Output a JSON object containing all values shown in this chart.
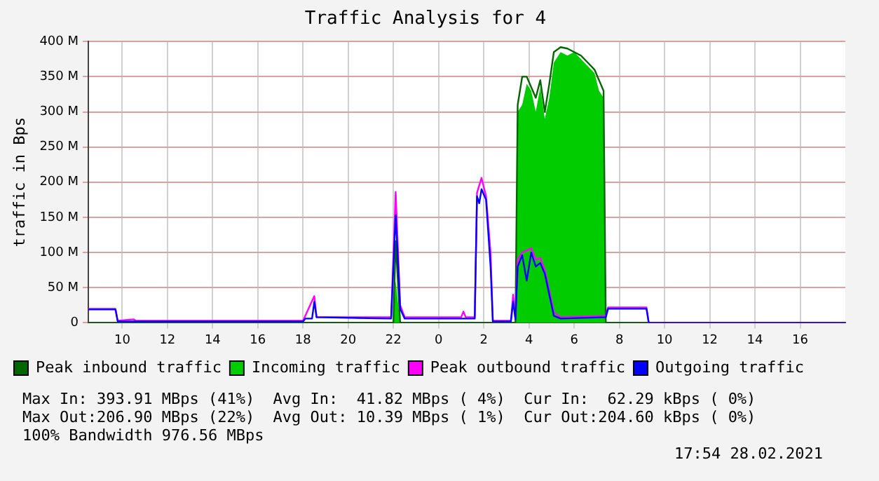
{
  "chart_data": {
    "type": "line",
    "title": "Traffic Analysis for 4",
    "ylabel": "traffic in Bps",
    "xlim": [
      "2021-02-27T08:30",
      "2021-02-28T18:00"
    ],
    "xticks": [
      {
        "value": "2021-02-27T10:00",
        "label": "10"
      },
      {
        "value": "2021-02-27T12:00",
        "label": "12"
      },
      {
        "value": "2021-02-27T14:00",
        "label": "14"
      },
      {
        "value": "2021-02-27T16:00",
        "label": "16"
      },
      {
        "value": "2021-02-27T18:00",
        "label": "18"
      },
      {
        "value": "2021-02-27T20:00",
        "label": "20"
      },
      {
        "value": "2021-02-27T22:00",
        "label": "22"
      },
      {
        "value": "2021-02-28T00:00",
        "label": "0"
      },
      {
        "value": "2021-02-28T02:00",
        "label": "2"
      },
      {
        "value": "2021-02-28T04:00",
        "label": "4"
      },
      {
        "value": "2021-02-28T06:00",
        "label": "6"
      },
      {
        "value": "2021-02-28T08:00",
        "label": "8"
      },
      {
        "value": "2021-02-28T10:00",
        "label": "10"
      },
      {
        "value": "2021-02-28T12:00",
        "label": "12"
      },
      {
        "value": "2021-02-28T14:00",
        "label": "14"
      },
      {
        "value": "2021-02-28T16:00",
        "label": "16"
      }
    ],
    "ylim": [
      0,
      400
    ],
    "yticks": [
      0,
      {
        "value": 50,
        "label": "50 M"
      },
      {
        "value": 100,
        "label": "100 M"
      },
      {
        "value": 150,
        "label": "150 M"
      },
      {
        "value": 200,
        "label": "200 M"
      },
      {
        "value": 250,
        "label": "250 M"
      },
      {
        "value": 300,
        "label": "300 M"
      },
      {
        "value": 350,
        "label": "350 M"
      },
      {
        "value": 400,
        "label": "400 M"
      }
    ],
    "grid": true,
    "legend": "bottom",
    "marker": "none",
    "line_style": "solid",
    "series": [
      {
        "name": "Peak inbound traffic",
        "color": "#006600",
        "x": [
          "2021-02-27T08:30",
          "2021-02-27T22:00",
          "2021-02-27T22:06",
          "2021-02-27T22:18",
          "2021-02-28T03:24",
          "2021-02-28T03:30",
          "2021-02-28T03:42",
          "2021-02-28T03:54",
          "2021-02-28T04:06",
          "2021-02-28T04:18",
          "2021-02-28T04:30",
          "2021-02-28T04:42",
          "2021-02-28T04:54",
          "2021-02-28T05:06",
          "2021-02-28T05:24",
          "2021-02-28T05:42",
          "2021-02-28T06:00",
          "2021-02-28T06:18",
          "2021-02-28T06:36",
          "2021-02-28T06:54",
          "2021-02-28T07:06",
          "2021-02-28T07:18",
          "2021-02-28T07:24",
          "2021-02-28T18:00"
        ],
        "values": [
          0,
          0,
          116,
          0,
          0,
          310,
          350,
          350,
          335,
          320,
          345,
          300,
          340,
          385,
          392,
          390,
          385,
          380,
          370,
          360,
          345,
          330,
          0,
          0
        ]
      },
      {
        "name": "Incoming traffic",
        "type": "area",
        "color": "#00cc00",
        "x": [
          "2021-02-27T08:30",
          "2021-02-27T22:00",
          "2021-02-27T22:06",
          "2021-02-27T22:18",
          "2021-02-28T03:24",
          "2021-02-28T03:30",
          "2021-02-28T03:42",
          "2021-02-28T03:54",
          "2021-02-28T04:06",
          "2021-02-28T04:18",
          "2021-02-28T04:30",
          "2021-02-28T04:42",
          "2021-02-28T04:54",
          "2021-02-28T05:06",
          "2021-02-28T05:24",
          "2021-02-28T05:42",
          "2021-02-28T06:00",
          "2021-02-28T06:18",
          "2021-02-28T06:36",
          "2021-02-28T06:54",
          "2021-02-28T07:06",
          "2021-02-28T07:18",
          "2021-02-28T07:24",
          "2021-02-28T18:00"
        ],
        "values": [
          0,
          0,
          60,
          0,
          0,
          300,
          310,
          340,
          330,
          300,
          335,
          290,
          320,
          370,
          385,
          380,
          385,
          375,
          365,
          355,
          330,
          320,
          0,
          0
        ]
      },
      {
        "name": "Peak outbound traffic",
        "color": "#ff00ff",
        "x": [
          "2021-02-27T08:30",
          "2021-02-27T09:42",
          "2021-02-27T09:48",
          "2021-02-27T10:30",
          "2021-02-27T10:36",
          "2021-02-27T18:00",
          "2021-02-27T18:30",
          "2021-02-27T18:36",
          "2021-02-27T21:54",
          "2021-02-27T22:00",
          "2021-02-27T22:06",
          "2021-02-27T22:18",
          "2021-02-27T22:30",
          "2021-02-28T01:00",
          "2021-02-28T01:06",
          "2021-02-28T01:12",
          "2021-02-28T01:36",
          "2021-02-28T01:42",
          "2021-02-28T01:54",
          "2021-02-28T02:06",
          "2021-02-28T02:18",
          "2021-02-28T02:24",
          "2021-02-28T03:12",
          "2021-02-28T03:18",
          "2021-02-28T03:24",
          "2021-02-28T03:30",
          "2021-02-28T03:42",
          "2021-02-28T04:06",
          "2021-02-28T04:18",
          "2021-02-28T04:30",
          "2021-02-28T04:42",
          "2021-02-28T04:54",
          "2021-02-28T05:06",
          "2021-02-28T05:24",
          "2021-02-28T07:24",
          "2021-02-28T07:30",
          "2021-02-28T09:12",
          "2021-02-28T09:18",
          "2021-02-28T18:00"
        ],
        "values": [
          20,
          20,
          3,
          5,
          3,
          3,
          38,
          8,
          8,
          95,
          186,
          25,
          8,
          8,
          16,
          8,
          8,
          185,
          206,
          180,
          100,
          3,
          3,
          40,
          6,
          90,
          100,
          106,
          90,
          92,
          75,
          45,
          15,
          8,
          10,
          22,
          22,
          0,
          0
        ]
      },
      {
        "name": "Outgoing traffic",
        "color": "#0000ff",
        "x": [
          "2021-02-27T08:30",
          "2021-02-27T09:42",
          "2021-02-27T09:48",
          "2021-02-27T18:00",
          "2021-02-27T18:06",
          "2021-02-27T18:24",
          "2021-02-27T18:30",
          "2021-02-27T18:36",
          "2021-02-27T21:54",
          "2021-02-27T22:00",
          "2021-02-27T22:06",
          "2021-02-27T22:12",
          "2021-02-27T22:18",
          "2021-02-27T22:30",
          "2021-02-28T01:36",
          "2021-02-28T01:42",
          "2021-02-28T01:48",
          "2021-02-28T01:54",
          "2021-02-28T02:06",
          "2021-02-28T02:18",
          "2021-02-28T02:24",
          "2021-02-28T03:12",
          "2021-02-28T03:18",
          "2021-02-28T03:24",
          "2021-02-28T03:30",
          "2021-02-28T03:42",
          "2021-02-28T03:54",
          "2021-02-28T04:06",
          "2021-02-28T04:18",
          "2021-02-28T04:30",
          "2021-02-28T04:42",
          "2021-02-28T04:54",
          "2021-02-28T05:06",
          "2021-02-28T05:24",
          "2021-02-28T07:24",
          "2021-02-28T07:30",
          "2021-02-28T09:12",
          "2021-02-28T09:18",
          "2021-02-28T18:00"
        ],
        "values": [
          19,
          19,
          2,
          2,
          6,
          6,
          30,
          8,
          6,
          80,
          153,
          90,
          20,
          6,
          6,
          180,
          170,
          190,
          175,
          80,
          2,
          2,
          30,
          5,
          80,
          96,
          60,
          100,
          80,
          85,
          70,
          40,
          10,
          6,
          8,
          20,
          20,
          0,
          0
        ]
      }
    ],
    "annotations": [
      "Max In: 393.91 MBps (41%)  Avg In:  41.82 MBps ( 4%)  Cur In:  62.29 kBps ( 0%)",
      "Max Out:206.90 MBps (22%)  Avg Out: 10.39 MBps ( 1%)  Cur Out:204.60 kBps ( 0%)",
      "100% Bandwidth 976.56 MBps",
      "17:54 28.02.2021"
    ]
  }
}
